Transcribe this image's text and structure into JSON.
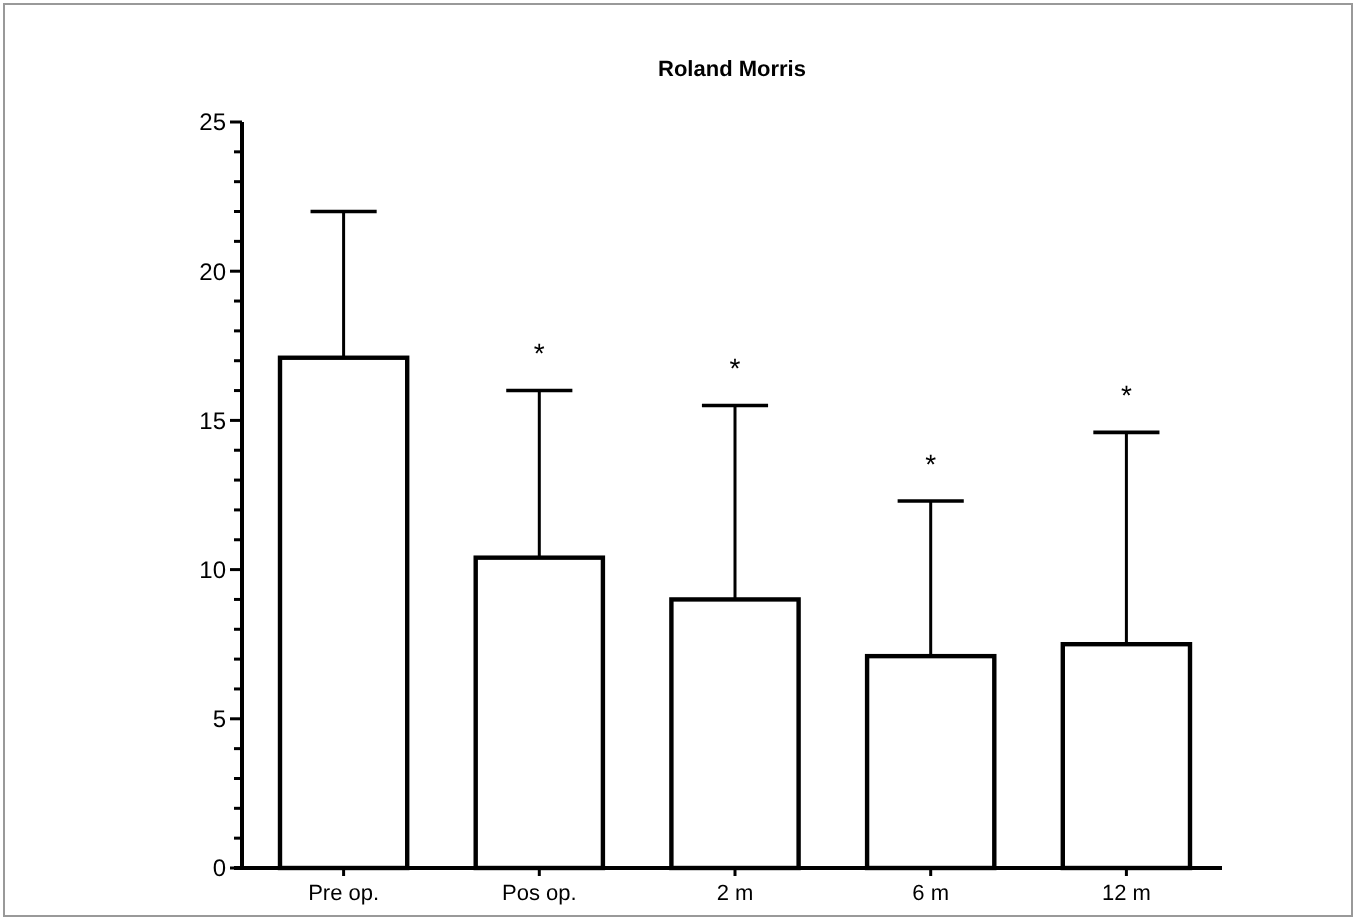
{
  "chart_data": {
    "type": "bar",
    "title": "Roland Morris",
    "categories": [
      "Pre op.",
      "Pos op.",
      "2 m",
      "6 m",
      "12 m"
    ],
    "values": [
      17.1,
      10.4,
      9.0,
      7.1,
      7.5
    ],
    "errors": [
      [
        17.1,
        22.0
      ],
      [
        10.4,
        16.0
      ],
      [
        9.0,
        15.5
      ],
      [
        7.1,
        12.3
      ],
      [
        7.5,
        14.6
      ]
    ],
    "color": "#ffffff",
    "ylim": [
      0,
      25
    ],
    "yticks": [
      0,
      {
        "value": 1,
        "label": null
      },
      {
        "value": 2,
        "label": null
      },
      {
        "value": 3,
        "label": null
      },
      {
        "value": 4,
        "label": null
      },
      5,
      {
        "value": 6,
        "label": null
      },
      {
        "value": 7,
        "label": null
      },
      {
        "value": 8,
        "label": null
      },
      {
        "value": 9,
        "label": null
      },
      10,
      {
        "value": 11,
        "label": null
      },
      {
        "value": 12,
        "label": null
      },
      {
        "value": 13,
        "label": null
      },
      {
        "value": 14,
        "label": null
      },
      15,
      {
        "value": 16,
        "label": null
      },
      {
        "value": 17,
        "label": null
      },
      {
        "value": 18,
        "label": null
      },
      {
        "value": 19,
        "label": null
      },
      20,
      {
        "value": 21,
        "label": null
      },
      {
        "value": 22,
        "label": null
      },
      {
        "value": 23,
        "label": null
      },
      {
        "value": 24,
        "label": null
      },
      25
    ],
    "annotations": [
      {
        "text": "*",
        "x": "Pos op.",
        "y": 16.0
      },
      {
        "text": "*",
        "x": "2 m",
        "y": 15.5
      },
      {
        "text": "*",
        "x": "6 m",
        "y": 12.3
      },
      {
        "text": "*",
        "x": "12 m",
        "y": 14.6
      }
    ],
    "grid": false
  }
}
